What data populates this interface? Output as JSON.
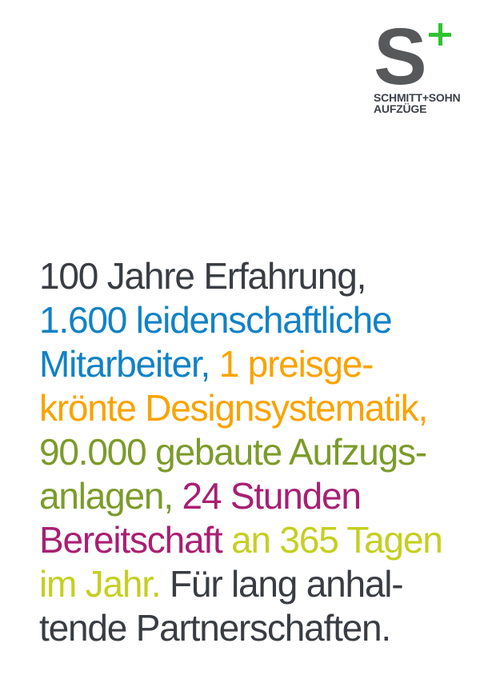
{
  "palette": {
    "text_gray": "#393d43",
    "blue": "#1182c6",
    "orange": "#f9a300",
    "olive": "#7c9b2b",
    "magenta": "#a81f73",
    "lime": "#c5cf21",
    "logo_green": "#30c330",
    "logo_s_gray": "#57585a",
    "wordmark_gray": "#3c4049",
    "background": "#ffffff"
  },
  "logo": {
    "letter": "S",
    "plus_icon": "plus-icon",
    "wordmark_line1": "SCHMITT+SOHN",
    "wordmark_line2": "AUFZÜGE"
  },
  "headline": {
    "lines": [
      {
        "segments": [
          {
            "text": "100 Jahre Erfahrung,",
            "color": "gray"
          }
        ]
      },
      {
        "segments": [
          {
            "text": "1.600 leidenschaftliche",
            "color": "blue"
          }
        ]
      },
      {
        "segments": [
          {
            "text": "Mitarbeiter, ",
            "color": "blue"
          },
          {
            "text": "1 preisge-",
            "color": "orange"
          }
        ]
      },
      {
        "segments": [
          {
            "text": "krönte Designsystematik,",
            "color": "orange"
          }
        ]
      },
      {
        "segments": [
          {
            "text": "90.000 gebaute Aufzugs-",
            "color": "olive"
          }
        ]
      },
      {
        "segments": [
          {
            "text": "anlagen, ",
            "color": "olive"
          },
          {
            "text": "24 Stunden",
            "color": "magenta"
          }
        ]
      },
      {
        "segments": [
          {
            "text": "Bereitschaft ",
            "color": "magenta"
          },
          {
            "text": "an 365 Tagen",
            "color": "lime"
          }
        ]
      },
      {
        "segments": [
          {
            "text": "im Jahr. ",
            "color": "lime"
          },
          {
            "text": "Für lang anhal-",
            "color": "gray"
          }
        ]
      },
      {
        "segments": [
          {
            "text": "tende Partnerschaften.",
            "color": "gray"
          }
        ]
      }
    ]
  }
}
